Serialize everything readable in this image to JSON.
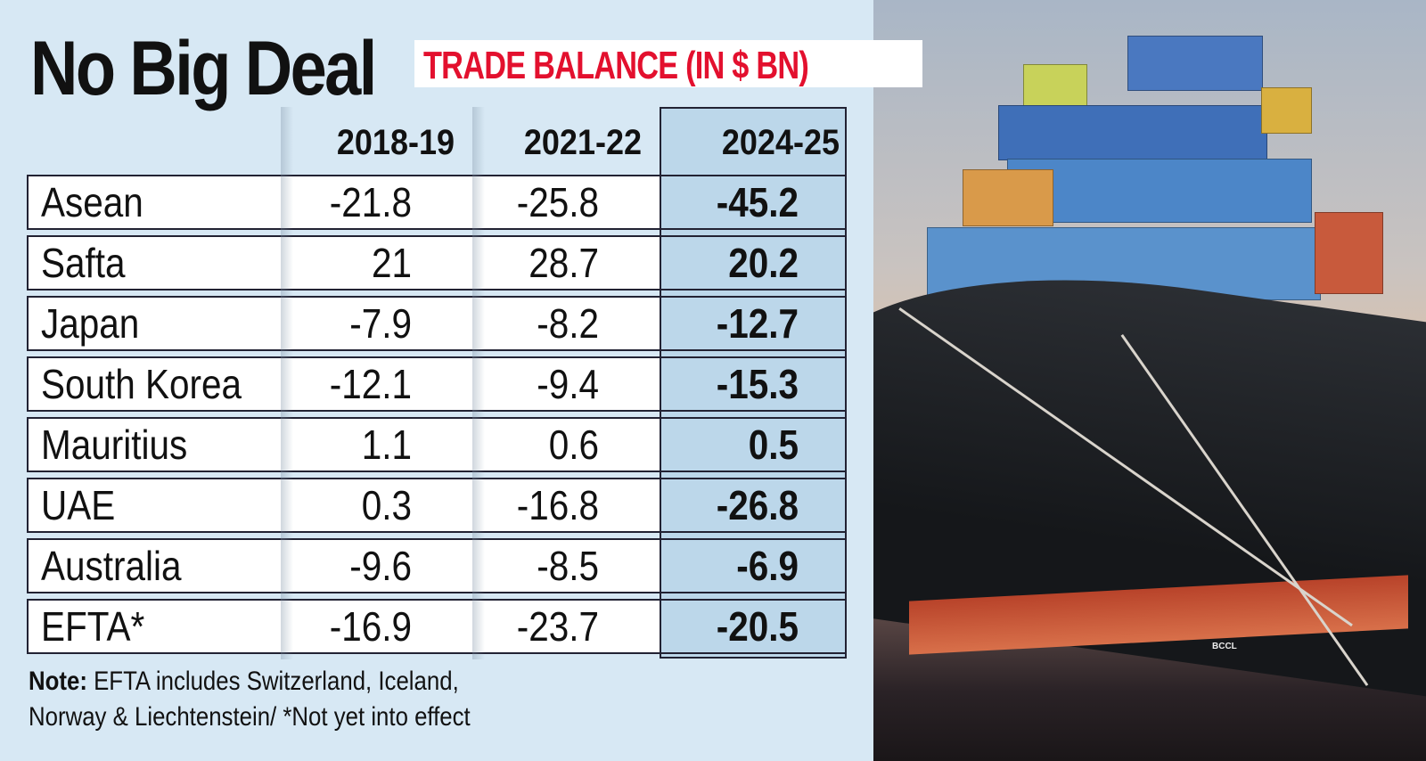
{
  "chart_data": {
    "type": "table",
    "title": "No Big Deal",
    "subtitle": "TRADE BALANCE (IN $ BN)",
    "columns": [
      "2018-19",
      "2021-22",
      "2024-25"
    ],
    "highlighted_column": "2024-25",
    "rows": [
      {
        "label": "Asean",
        "values": [
          "-21.8",
          "-25.8",
          "-45.2"
        ]
      },
      {
        "label": "Safta",
        "values": [
          "21",
          "28.7",
          "20.2"
        ]
      },
      {
        "label": "Japan",
        "values": [
          "-7.9",
          "-8.2",
          "-12.7"
        ]
      },
      {
        "label": "South Korea",
        "values": [
          "-12.1",
          "-9.4",
          "-15.3"
        ]
      },
      {
        "label": "Mauritius",
        "values": [
          "1.1",
          "0.6",
          "0.5"
        ]
      },
      {
        "label": "UAE",
        "values": [
          "0.3",
          "-16.8",
          "-26.8"
        ]
      },
      {
        "label": "Australia",
        "values": [
          "-9.6",
          "-8.5",
          "-6.9"
        ]
      },
      {
        "label": "EFTA*",
        "values": [
          "-16.9",
          "-23.7",
          "-20.5"
        ]
      }
    ],
    "note_label": "Note:",
    "note_line1": "EFTA includes Switzerland, Iceland,",
    "note_line2": "Norway & Liechtenstein/ *Not yet into effect"
  },
  "photo": {
    "watermark": "BCCL"
  },
  "colors": {
    "background": "#d7e8f4",
    "subtitle": "#e3102e",
    "highlight": "#bcd7ea"
  }
}
